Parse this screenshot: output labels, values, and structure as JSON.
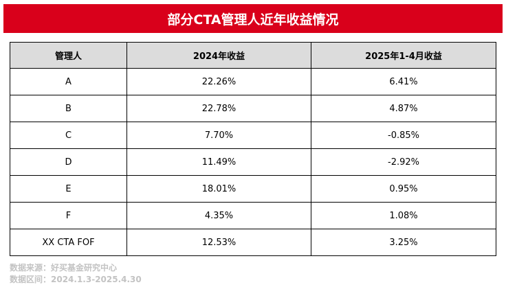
{
  "title": "部分CTA管理人近年收益情况",
  "table": {
    "headers": [
      "管理人",
      "2024年收益",
      "2025年1-4月收益"
    ],
    "rows": [
      [
        "A",
        "22.26%",
        "6.41%"
      ],
      [
        "B",
        "22.78%",
        "4.87%"
      ],
      [
        "C",
        "7.70%",
        "-0.85%"
      ],
      [
        "D",
        "11.49%",
        "-2.92%"
      ],
      [
        "E",
        "18.01%",
        "0.95%"
      ],
      [
        "F",
        "4.35%",
        "1.08%"
      ],
      [
        "XX CTA FOF",
        "12.53%",
        "3.25%"
      ]
    ]
  },
  "footer": {
    "source": "数据来源：好买基金研究中心",
    "period": "数据区间：2024.1.3-2025.4.30"
  },
  "colors": {
    "title_bg": "#d9001b",
    "header_bg": "#dcdcdc",
    "footer_text": "#c3c3c3"
  }
}
